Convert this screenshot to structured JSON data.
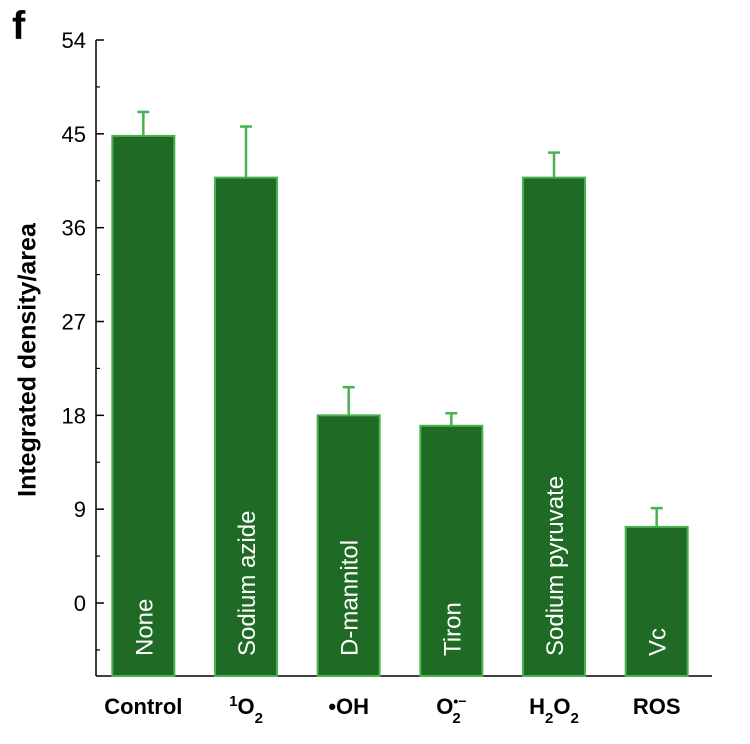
{
  "panel_letter": "f",
  "chart_data": {
    "type": "bar",
    "title": "",
    "xlabel": "",
    "ylabel": "Integrated density/area",
    "ylim": [
      -7,
      54
    ],
    "yticks": [
      0,
      9,
      18,
      27,
      36,
      45,
      54
    ],
    "categories": [
      {
        "base": "Control",
        "sup": "",
        "sub": "",
        "pre": "",
        "post": ""
      },
      {
        "base": "O",
        "pre": "1",
        "sub": "2",
        "sup": "",
        "post": ""
      },
      {
        "base": "•OH",
        "sup": "",
        "sub": "",
        "pre": "",
        "post": ""
      },
      {
        "base": "O",
        "sub": "2",
        "sup": "•−",
        "pre": "",
        "post": ""
      },
      {
        "base": "H",
        "sub": "2",
        "post": "O",
        "post_sub": "2",
        "sup": "",
        "pre": ""
      },
      {
        "base": "ROS",
        "sup": "",
        "sub": "",
        "pre": "",
        "post": ""
      }
    ],
    "bar_labels": [
      "None",
      "Sodium azide",
      "D-mannitol",
      "Tiron",
      "Sodium pyruvate",
      "Vc"
    ],
    "values": [
      44.8,
      40.8,
      18.0,
      17.0,
      40.8,
      7.3
    ],
    "errors": [
      2.3,
      4.9,
      2.7,
      1.2,
      2.4,
      1.8
    ],
    "bar_color": "#1f6b26",
    "bar_edge_color": "#48b24c",
    "grid": false
  }
}
